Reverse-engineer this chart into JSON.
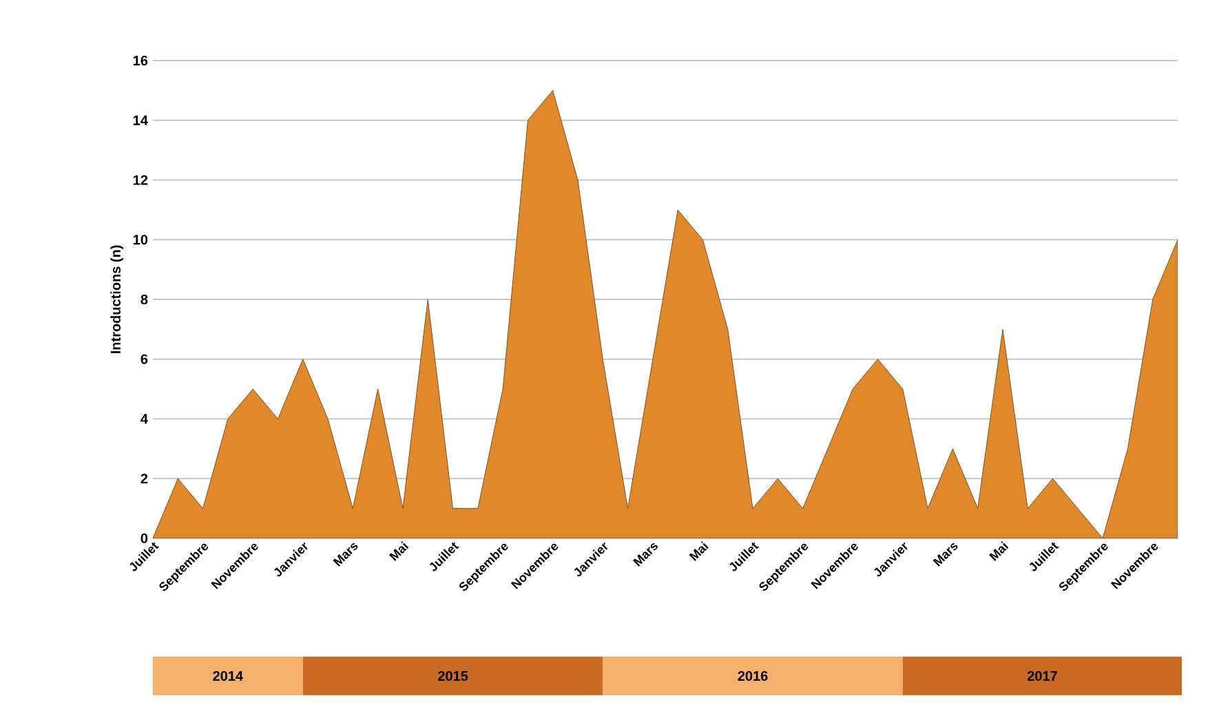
{
  "chart_data": {
    "type": "area",
    "ylabel": "Introductions (n)",
    "categories": [
      "Juillet",
      null,
      "Septembre",
      null,
      "Novembre",
      null,
      "Janvier",
      null,
      "Mars",
      null,
      "Mai",
      null,
      "Juillet",
      null,
      "Septembre",
      null,
      "Novembre",
      null,
      "Janvier",
      null,
      "Mars",
      null,
      "Mai",
      null,
      "Juillet",
      null,
      "Septembre",
      null,
      "Novembre",
      null,
      "Janvier",
      null,
      "Mars",
      null,
      "Mai",
      null,
      "Juillet",
      null,
      "Septembre",
      null,
      "Novembre",
      null
    ],
    "values": [
      0,
      2,
      1,
      4,
      5,
      4,
      6,
      4,
      1,
      5,
      1,
      8,
      1,
      1,
      5,
      14,
      15,
      12,
      6,
      1,
      6,
      11,
      10,
      7,
      1,
      2,
      1,
      3,
      5,
      6,
      5,
      1,
      3,
      1,
      7,
      1,
      2,
      1,
      0,
      3,
      8,
      10
    ],
    "color": "#e0892c",
    "ylim": [
      0,
      16
    ],
    "yticks": [
      0,
      2,
      4,
      6,
      8,
      10,
      12,
      14,
      16
    ],
    "grid": "y",
    "annotations": [
      "2014",
      "2015",
      "2016",
      "2017"
    ]
  }
}
